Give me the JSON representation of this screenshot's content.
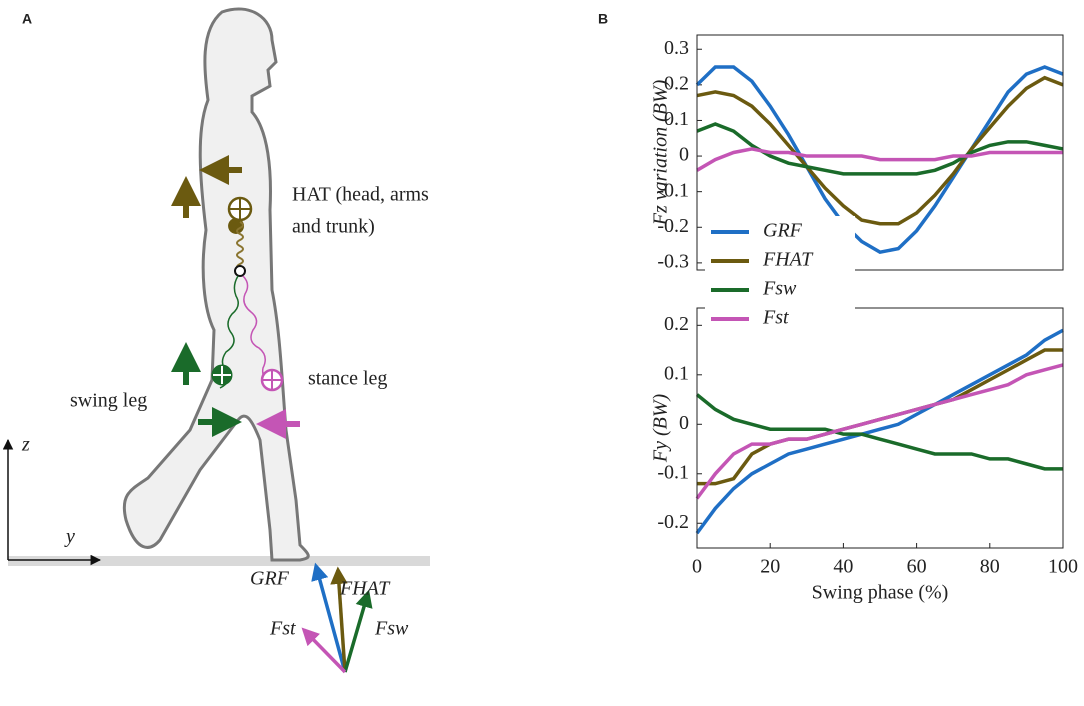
{
  "diagram": {
    "panel_a": "A",
    "panel_b": "B",
    "hat_line1": "HAT (head, arms",
    "hat_line2": "and trunk)",
    "swing_leg": "swing leg",
    "stance_leg": "stance leg",
    "axis_z": "z",
    "axis_y": "y",
    "force_grf": "GRF",
    "force_hat": "FHAT",
    "force_st": "Fst",
    "force_sw": "Fsw"
  },
  "chart_data": [
    {
      "type": "line",
      "ylabel": "Fz variation (BW)",
      "x": [
        0,
        5,
        10,
        15,
        20,
        25,
        30,
        35,
        40,
        45,
        50,
        55,
        60,
        65,
        70,
        75,
        80,
        85,
        90,
        95,
        100
      ],
      "xlim": [
        0,
        100
      ],
      "ylim": [
        -0.32,
        0.34
      ],
      "yticks": [
        0.3,
        0.2,
        0.1,
        0,
        -0.1,
        -0.2,
        -0.3
      ],
      "legend": "lower left",
      "grid": false,
      "series": [
        {
          "name": "GRF",
          "color": "#1f6fc5",
          "values": [
            0.2,
            0.25,
            0.25,
            0.21,
            0.14,
            0.06,
            -0.03,
            -0.12,
            -0.19,
            -0.24,
            -0.27,
            -0.26,
            -0.21,
            -0.14,
            -0.06,
            0.02,
            0.1,
            0.18,
            0.23,
            0.25,
            0.23
          ]
        },
        {
          "name": "FHAT",
          "color": "#6b5a10",
          "values": [
            0.17,
            0.18,
            0.17,
            0.14,
            0.09,
            0.03,
            -0.03,
            -0.09,
            -0.14,
            -0.18,
            -0.19,
            -0.19,
            -0.16,
            -0.11,
            -0.05,
            0.02,
            0.08,
            0.14,
            0.19,
            0.22,
            0.2
          ]
        },
        {
          "name": "Fsw",
          "color": "#1a6b2a",
          "values": [
            0.07,
            0.09,
            0.07,
            0.03,
            0,
            -0.02,
            -0.03,
            -0.04,
            -0.05,
            -0.05,
            -0.05,
            -0.05,
            -0.05,
            -0.04,
            -0.02,
            0.01,
            0.03,
            0.04,
            0.04,
            0.03,
            0.02
          ]
        },
        {
          "name": "Fst",
          "color": "#c455b5",
          "values": [
            -0.04,
            -0.01,
            0.01,
            0.02,
            0.01,
            0.01,
            0,
            0,
            0,
            0,
            -0.01,
            -0.01,
            -0.01,
            -0.01,
            0,
            0,
            0.01,
            0.01,
            0.01,
            0.01,
            0.01
          ]
        }
      ]
    },
    {
      "type": "line",
      "ylabel": "Fy (BW)",
      "xlabel": "Swing phase (%)",
      "x": [
        0,
        5,
        10,
        15,
        20,
        25,
        30,
        35,
        40,
        45,
        50,
        55,
        60,
        65,
        70,
        75,
        80,
        85,
        90,
        95,
        100
      ],
      "xlim": [
        0,
        100
      ],
      "xticks": [
        0,
        20,
        40,
        60,
        80,
        100
      ],
      "ylim": [
        -0.25,
        0.235
      ],
      "yticks": [
        0.2,
        0.1,
        0,
        -0.1,
        -0.2
      ],
      "grid": false,
      "series": [
        {
          "name": "GRF",
          "color": "#1f6fc5",
          "values": [
            -0.22,
            -0.17,
            -0.13,
            -0.1,
            -0.08,
            -0.06,
            -0.05,
            -0.04,
            -0.03,
            -0.02,
            -0.01,
            0.0,
            0.02,
            0.04,
            0.06,
            0.08,
            0.1,
            0.12,
            0.14,
            0.17,
            0.19
          ]
        },
        {
          "name": "FHAT",
          "color": "#6b5a10",
          "values": [
            -0.12,
            -0.12,
            -0.11,
            -0.06,
            -0.04,
            -0.03,
            -0.03,
            -0.02,
            -0.01,
            0,
            0.01,
            0.02,
            0.03,
            0.04,
            0.05,
            0.07,
            0.09,
            0.11,
            0.13,
            0.15,
            0.15
          ]
        },
        {
          "name": "Fsw",
          "color": "#1a6b2a",
          "values": [
            0.06,
            0.03,
            0.01,
            0.0,
            -0.01,
            -0.01,
            -0.01,
            -0.01,
            -0.02,
            -0.02,
            -0.03,
            -0.04,
            -0.05,
            -0.06,
            -0.06,
            -0.06,
            -0.07,
            -0.07,
            -0.08,
            -0.09,
            -0.09
          ]
        },
        {
          "name": "Fst",
          "color": "#c455b5",
          "values": [
            -0.15,
            -0.1,
            -0.06,
            -0.04,
            -0.04,
            -0.03,
            -0.03,
            -0.02,
            -0.01,
            0,
            0.01,
            0.02,
            0.03,
            0.04,
            0.05,
            0.06,
            0.07,
            0.08,
            0.1,
            0.11,
            0.12
          ]
        }
      ]
    }
  ]
}
